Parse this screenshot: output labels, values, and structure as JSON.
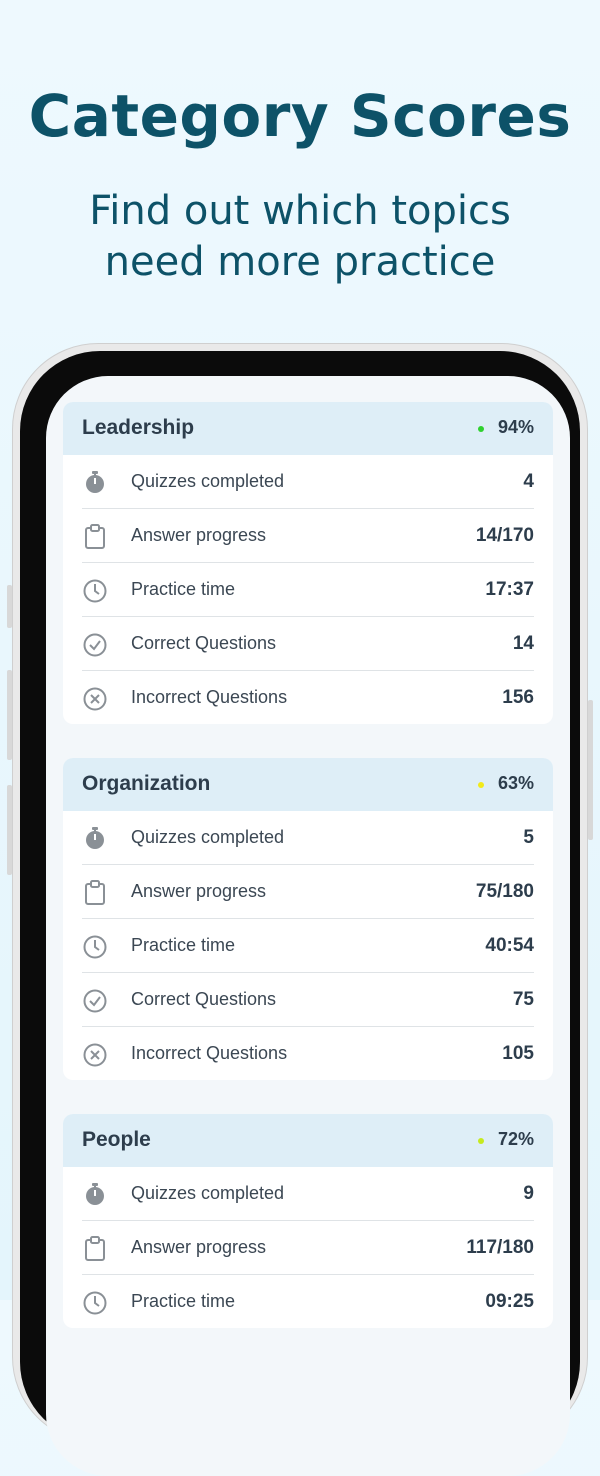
{
  "header": {
    "title": "Category Scores",
    "subtitle": "Find out which topics need more practice"
  },
  "categories": [
    {
      "name": "Leadership",
      "score": "94%",
      "status_color": "#2fd12f",
      "rows": [
        {
          "label": "Quizzes completed",
          "value": "4"
        },
        {
          "label": "Answer progress",
          "value": "14/170"
        },
        {
          "label": "Practice time",
          "value": "17:37"
        },
        {
          "label": "Correct Questions",
          "value": "14"
        },
        {
          "label": "Incorrect Questions",
          "value": "156"
        }
      ]
    },
    {
      "name": "Organization",
      "score": "63%",
      "status_color": "#f2ea1a",
      "rows": [
        {
          "label": "Quizzes completed",
          "value": "5"
        },
        {
          "label": "Answer progress",
          "value": "75/180"
        },
        {
          "label": "Practice time",
          "value": "40:54"
        },
        {
          "label": "Correct Questions",
          "value": "75"
        },
        {
          "label": "Incorrect Questions",
          "value": "105"
        }
      ]
    },
    {
      "name": "People",
      "score": "72%",
      "status_color": "#c6ea1e",
      "rows": [
        {
          "label": "Quizzes completed",
          "value": "9"
        },
        {
          "label": "Answer progress",
          "value": "117/180"
        },
        {
          "label": "Practice time",
          "value": "09:25"
        }
      ]
    }
  ]
}
